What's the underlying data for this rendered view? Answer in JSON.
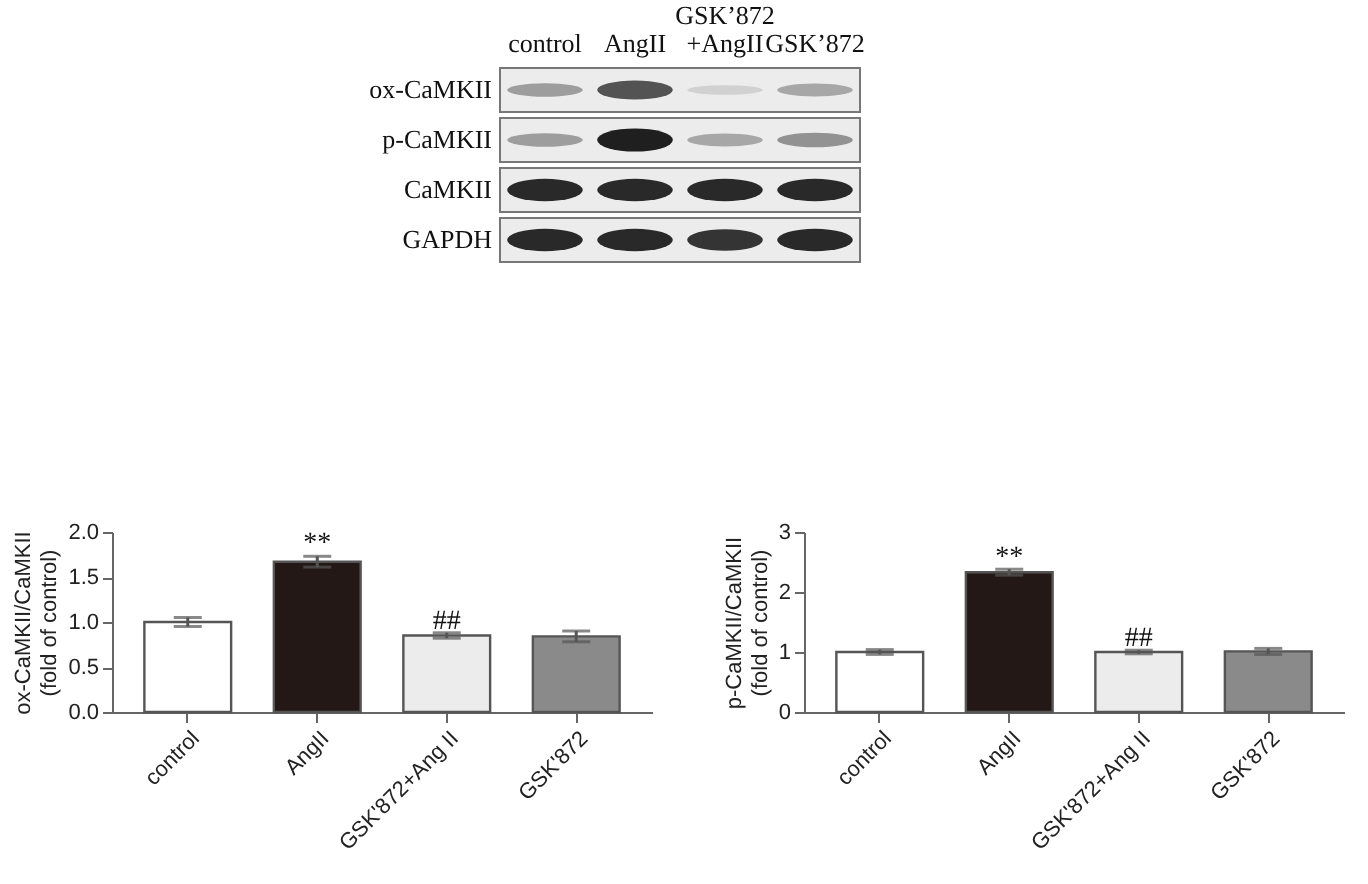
{
  "chart_data": [
    {
      "type": "other",
      "categories": [
        "control",
        "AngII",
        "GSK’872\n+AngII",
        "GSK’872"
      ],
      "y_categories": [
        "ox-CaMKII",
        "p-CaMKII",
        "CaMKII",
        "GAPDH"
      ]
    },
    {
      "type": "bar",
      "ylabel": "ox-CaMKII/CaMKII\n(fold of control)",
      "categories": [
        "control",
        "AngII",
        "GSK'872+Ang II",
        "GSK'872"
      ],
      "values": [
        1.0,
        1.67,
        0.85,
        0.84
      ],
      "errors": [
        0.05,
        0.06,
        0.03,
        0.06
      ],
      "colors": [
        "#ffffff",
        "#231815",
        "#ececec",
        "#8a8a8a"
      ],
      "ylim": [
        0,
        2.0
      ],
      "yticks": [
        {
          "value": 0,
          "label": "0.0"
        },
        0.5,
        {
          "value": 1,
          "label": "1.0"
        },
        1.5,
        {
          "value": 2,
          "label": "2.0"
        }
      ],
      "grid": false,
      "legend": false,
      "annotations": [
        {
          "text": "**",
          "x": "AngII",
          "y": 1.74
        },
        {
          "text": "##",
          "x": "GSK'872+Ang II",
          "y": 0.88
        }
      ]
    },
    {
      "type": "bar",
      "ylabel": "p-CaMKII/CaMKII\n(fold of control)",
      "categories": [
        "control",
        "AngII",
        "GSK'872+Ang II",
        "GSK'872"
      ],
      "values": [
        1.0,
        2.33,
        1.0,
        1.01
      ],
      "errors": [
        0.04,
        0.05,
        0.03,
        0.05
      ],
      "colors": [
        "#ffffff",
        "#231815",
        "#ececec",
        "#8a8a8a"
      ],
      "ylim": [
        0,
        3
      ],
      "yticks": [
        0,
        1,
        2,
        3
      ],
      "grid": false,
      "legend": false,
      "annotations": [
        {
          "text": "**",
          "x": "AngII",
          "y": 2.39
        },
        {
          "text": "##",
          "x": "GSK'872+Ang II",
          "y": 1.03
        }
      ]
    }
  ]
}
